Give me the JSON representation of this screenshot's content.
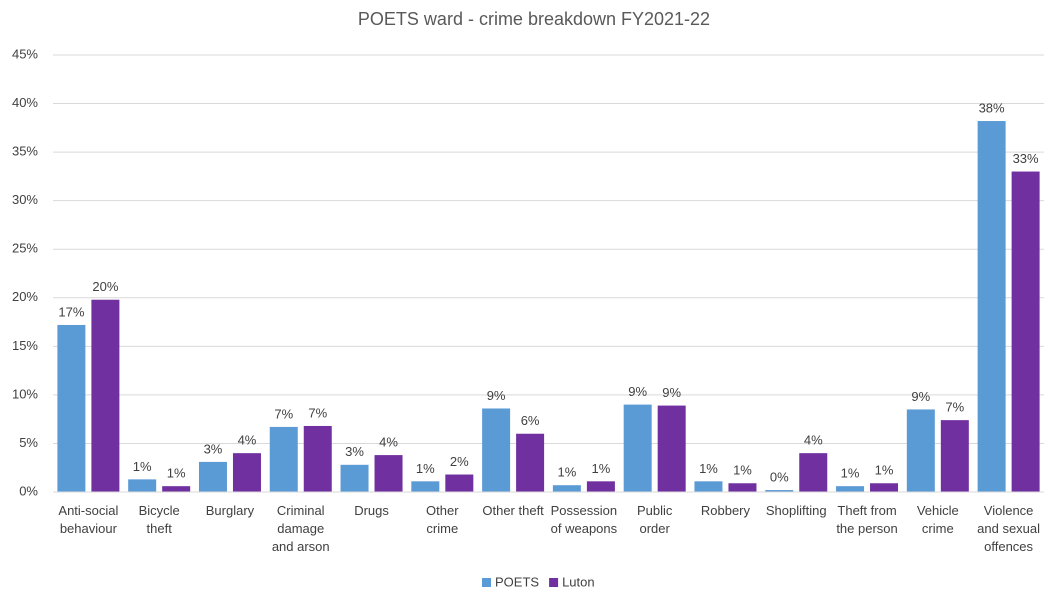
{
  "chart_data": {
    "type": "bar",
    "title": "POETS ward - crime breakdown FY2021-22",
    "categories": [
      "Anti-social behaviour",
      "Bicycle theft",
      "Burglary",
      "Criminal damage and arson",
      "Drugs",
      "Other crime",
      "Other theft",
      "Possession of weapons",
      "Public order",
      "Robbery",
      "Shoplifting",
      "Theft from the person",
      "Vehicle crime",
      "Violence and sexual offences"
    ],
    "series": [
      {
        "name": "POETS",
        "color": "#5b9bd5",
        "values": [
          17.2,
          1.3,
          3.1,
          6.7,
          2.8,
          1.1,
          8.6,
          0.7,
          9.0,
          1.1,
          0.2,
          0.6,
          8.5,
          38.2
        ],
        "value_labels": [
          "17%",
          "1%",
          "3%",
          "7%",
          "3%",
          "1%",
          "9%",
          "1%",
          "9%",
          "1%",
          "0%",
          "1%",
          "9%",
          "38%"
        ]
      },
      {
        "name": "Luton",
        "color": "#7030a0",
        "values": [
          19.8,
          0.6,
          4.0,
          6.8,
          3.8,
          1.8,
          6.0,
          1.1,
          8.9,
          0.9,
          4.0,
          0.9,
          7.4,
          33.0
        ],
        "value_labels": [
          "20%",
          "1%",
          "4%",
          "7%",
          "4%",
          "2%",
          "6%",
          "1%",
          "9%",
          "1%",
          "4%",
          "1%",
          "7%",
          "33%"
        ]
      }
    ],
    "ylim": [
      0,
      45
    ],
    "yticks": [
      {
        "value": 0,
        "label": "0%"
      },
      {
        "value": 5,
        "label": "5%"
      },
      {
        "value": 10,
        "label": "10%"
      },
      {
        "value": 15,
        "label": "15%"
      },
      {
        "value": 20,
        "label": "20%"
      },
      {
        "value": 25,
        "label": "25%"
      },
      {
        "value": 30,
        "label": "30%"
      },
      {
        "value": 35,
        "label": "35%"
      },
      {
        "value": 40,
        "label": "40%"
      },
      {
        "value": 45,
        "label": "45%"
      }
    ],
    "grid": true,
    "legend": "bottom"
  }
}
